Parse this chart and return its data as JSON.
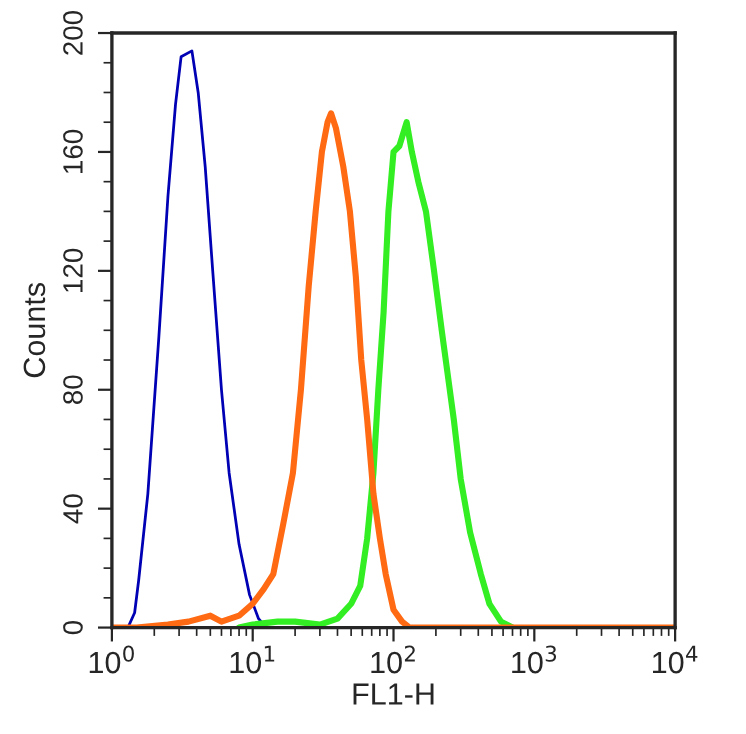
{
  "chart_data": {
    "type": "line",
    "xlabel": "FL1-H",
    "ylabel": "Counts",
    "log": "x",
    "grid": false,
    "legend": false,
    "marker": "none",
    "line_style": "solid",
    "xlim": [
      1,
      10000
    ],
    "xticks": [
      {
        "value": 1,
        "label": "10$^{0}$"
      },
      {
        "value": 10,
        "label": "10$^{1}$"
      },
      {
        "value": 100,
        "label": "10$^{2}$"
      },
      {
        "value": 1000,
        "label": "10$^{3}$"
      },
      {
        "value": 10000,
        "label": "10$^{4}$"
      }
    ],
    "ylim": [
      0,
      200
    ],
    "yticks": [
      0,
      40,
      80,
      120,
      160,
      200
    ],
    "series": [
      {
        "color": "#0000b4",
        "x": [
          1.0,
          1.3,
          1.45,
          1.55,
          1.8,
          2.15,
          2.5,
          2.83,
          3.1,
          3.7,
          4.1,
          4.6,
          5.2,
          6.0,
          6.8,
          8.0,
          9.5,
          11,
          12.5
        ],
        "values": [
          0,
          0,
          5,
          16,
          45,
          97,
          145,
          176,
          192,
          194,
          180,
          155,
          120,
          80,
          52,
          28,
          11,
          3,
          0
        ]
      },
      {
        "color": "#33ee22",
        "x": [
          8,
          10,
          15,
          20,
          30,
          40,
          50,
          58,
          65,
          72,
          78,
          85,
          92,
          100,
          110,
          124,
          135,
          150,
          170,
          194,
          220,
          268,
          300,
          350,
          417,
          480,
          580,
          700
        ],
        "values": [
          0,
          1,
          2,
          2,
          1,
          3,
          8,
          14,
          30,
          52,
          80,
          106,
          140,
          160,
          162,
          170,
          160,
          150,
          140,
          120,
          100,
          70,
          50,
          32,
          18,
          8,
          2,
          0
        ]
      },
      {
        "color": "#ff6a13",
        "x": [
          1.0,
          1.5,
          2.5,
          3.5,
          5,
          6,
          8,
          10,
          12,
          14,
          16.5,
          19.3,
          22,
          25,
          28,
          31,
          34,
          36,
          39,
          44,
          49,
          54,
          59,
          65,
          72,
          80,
          88,
          100,
          115,
          130,
          1000,
          10000
        ],
        "values": [
          0,
          0,
          1,
          2,
          4,
          2,
          4,
          8,
          13,
          18,
          35,
          52,
          80,
          115,
          140,
          160,
          170,
          173,
          168,
          155,
          140,
          118,
          90,
          70,
          45,
          30,
          18,
          6,
          2,
          0,
          0,
          0
        ]
      }
    ]
  }
}
